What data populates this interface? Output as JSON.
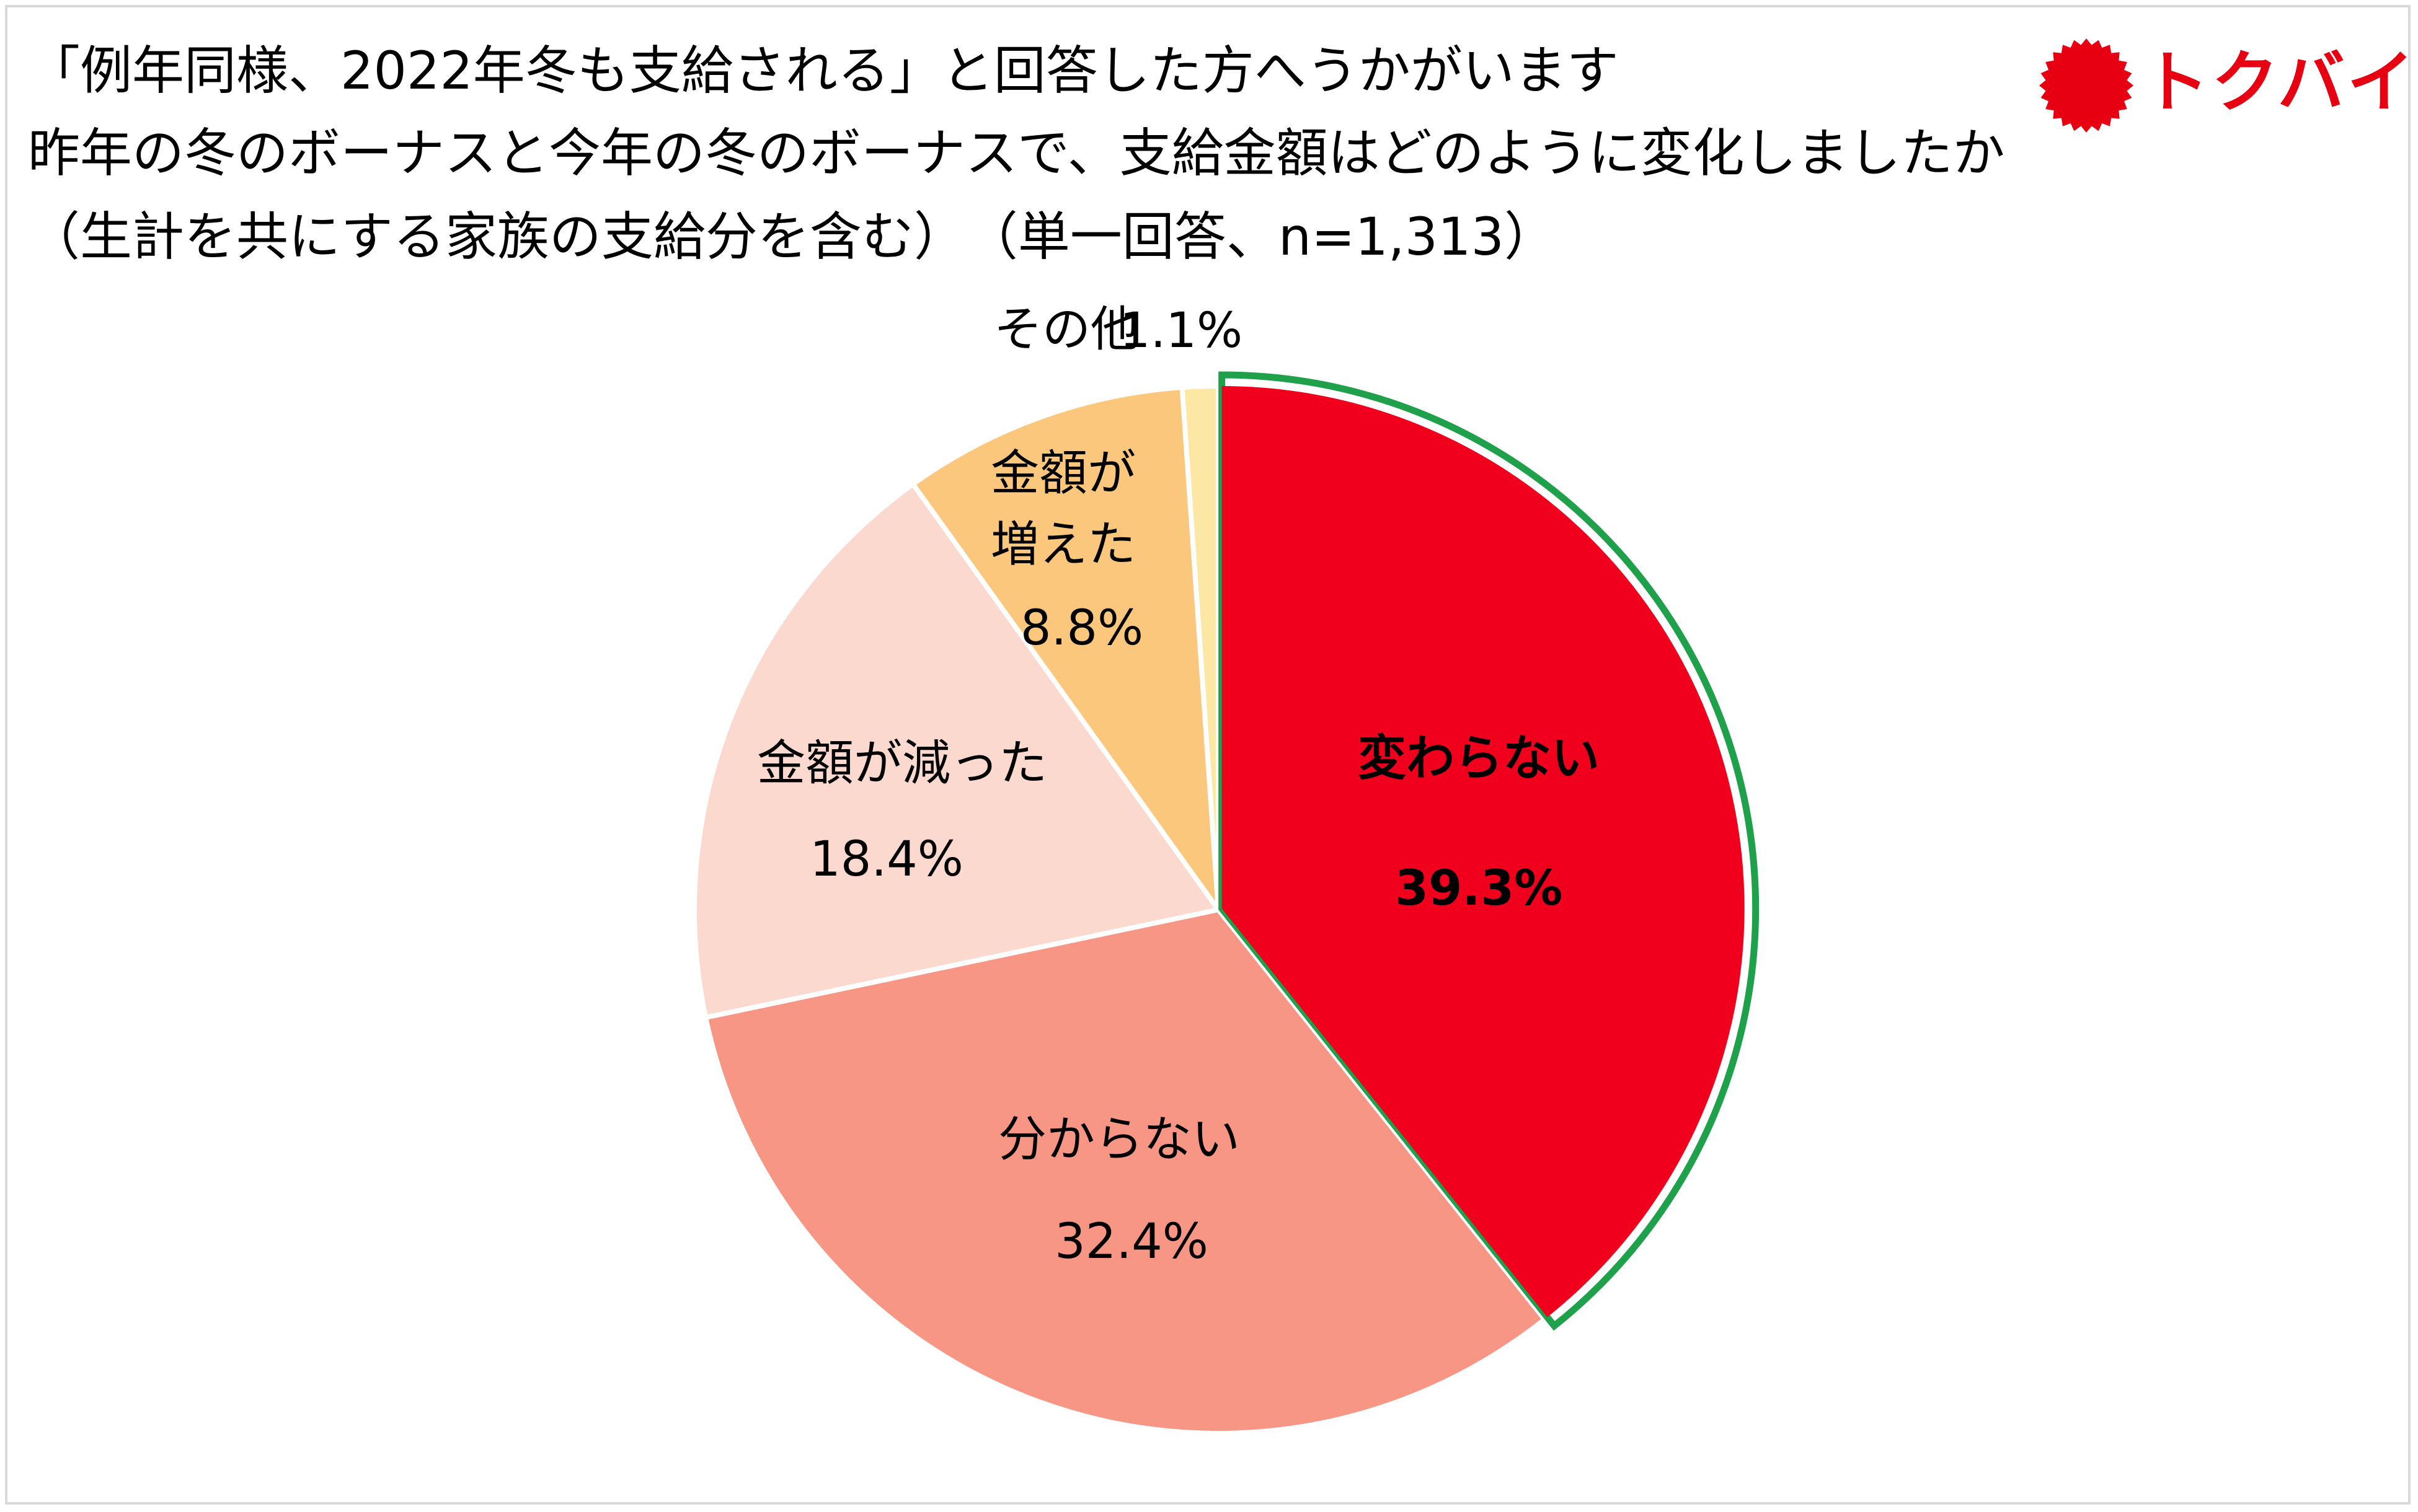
{
  "header": {
    "title_line1": "「例年同様、2022年冬も支給される」と回答した方へうかがいます",
    "title_line2": "昨年の冬のボーナスと今年の冬のボーナスで、支給金額はどのように変化しましたか",
    "title_line3": "（生計を共にする家族の支給分を含む）　（単一回答、n=1,313）"
  },
  "logo": {
    "text": "トクバイ",
    "icon": "red-starburst-icon",
    "color": "#e60012"
  },
  "chart_data": {
    "type": "pie",
    "start": "12 o'clock",
    "direction": "clockwise",
    "highlighted": "変わらない",
    "highlight_color": "#1fa04a",
    "slices": [
      {
        "label": "変わらない",
        "value": 39.3,
        "value_label": "39.3%",
        "color": "#f0001c",
        "bold": true
      },
      {
        "label": "分からない",
        "value": 32.4,
        "value_label": "32.4%",
        "color": "#f79684",
        "bold": false
      },
      {
        "label": "金額が減った",
        "value": 18.4,
        "value_label": "18.4%",
        "color": "#fcd9cf",
        "bold": false
      },
      {
        "label": "金額が増えた",
        "label_lines": [
          "金額が",
          "増えた"
        ],
        "value": 8.8,
        "value_label": "8.8%",
        "color": "#fac77c",
        "bold": false
      },
      {
        "label": "その他",
        "value": 1.1,
        "value_label": "1.1%",
        "color": "#fde7a4",
        "bold": false
      }
    ]
  }
}
